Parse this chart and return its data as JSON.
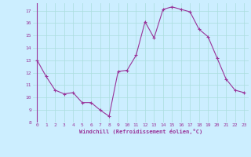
{
  "x": [
    0,
    1,
    2,
    3,
    4,
    5,
    6,
    7,
    8,
    9,
    10,
    11,
    12,
    13,
    14,
    15,
    16,
    17,
    18,
    19,
    20,
    21,
    22,
    23
  ],
  "y": [
    13.0,
    11.7,
    10.6,
    10.3,
    10.4,
    9.6,
    9.6,
    9.0,
    8.5,
    12.1,
    12.2,
    13.4,
    16.1,
    14.8,
    17.1,
    17.3,
    17.1,
    16.9,
    15.5,
    14.9,
    13.2,
    11.5,
    10.6,
    10.4
  ],
  "line_color": "#993399",
  "marker": "+",
  "marker_size": 3,
  "bg_color": "#cceeff",
  "grid_color": "#aadddd",
  "xlabel": "Windchill (Refroidissement éolien,°C)",
  "xlabel_color": "#993399",
  "tick_color": "#993399",
  "label_color": "#993399",
  "ylim": [
    8,
    17.6
  ],
  "xlim": [
    -0.5,
    23.5
  ],
  "yticks": [
    8,
    9,
    10,
    11,
    12,
    13,
    14,
    15,
    16,
    17
  ],
  "xticks": [
    0,
    1,
    2,
    3,
    4,
    5,
    6,
    7,
    8,
    9,
    10,
    11,
    12,
    13,
    14,
    15,
    16,
    17,
    18,
    19,
    20,
    21,
    22,
    23
  ]
}
